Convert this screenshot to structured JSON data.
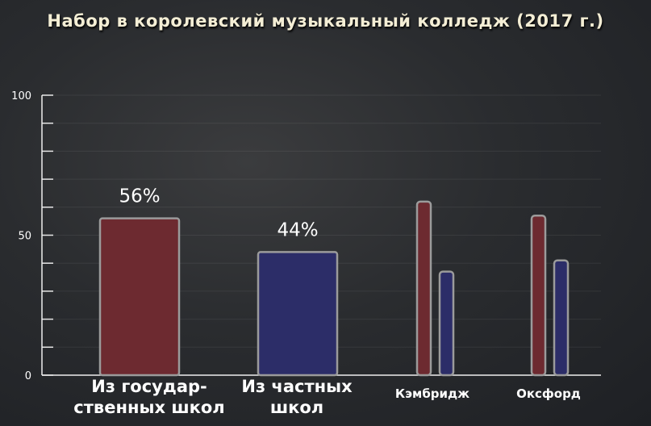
{
  "title": "Набор в королевский музыкальный колледж (2017 г.)",
  "chart_data": {
    "type": "bar",
    "ylim": [
      0,
      100
    ],
    "y_tick_labels": [
      "0",
      "50",
      "100"
    ],
    "y_minor_step": 10,
    "groups": [
      {
        "label_lines": [
          "Из государ-",
          "ственных школ"
        ],
        "bars": [
          {
            "value": 56,
            "color": "#6d2a30",
            "data_label": "56%"
          }
        ]
      },
      {
        "label_lines": [
          "Из частных",
          "школ"
        ],
        "bars": [
          {
            "value": 44,
            "color": "#2c2d68",
            "data_label": "44%"
          }
        ]
      },
      {
        "label_lines": [
          "Кэмбридж"
        ],
        "bars": [
          {
            "value": 62,
            "color": "#6d2a30"
          },
          {
            "value": 37,
            "color": "#2c2d68"
          }
        ]
      },
      {
        "label_lines": [
          "Оксфорд"
        ],
        "bars": [
          {
            "value": 57,
            "color": "#6d2a30"
          },
          {
            "value": 41,
            "color": "#2c2d68"
          }
        ]
      }
    ],
    "grid": true
  }
}
